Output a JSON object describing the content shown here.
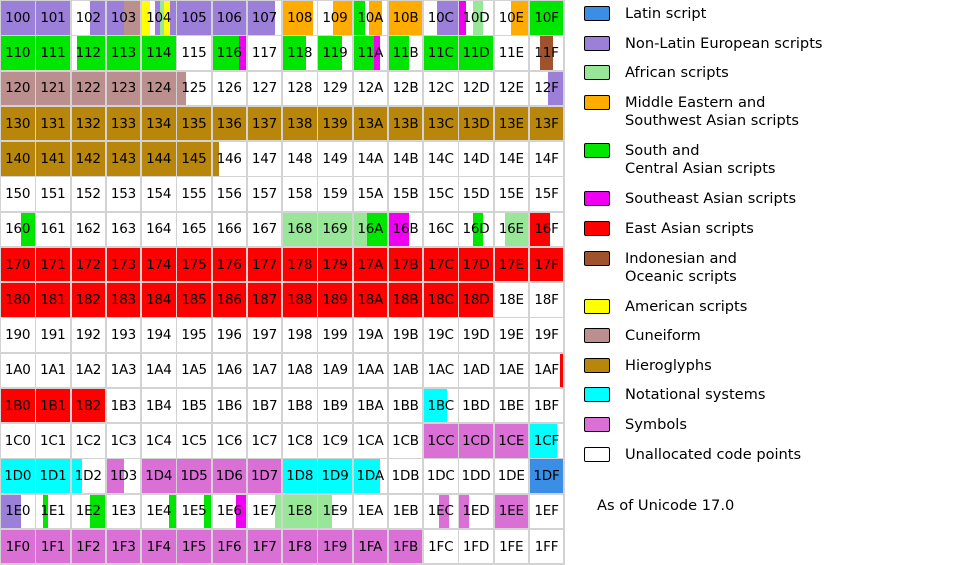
{
  "legend": [
    {
      "key": "L",
      "label": "Latin script",
      "color": "#3a8ee6"
    },
    {
      "key": "E",
      "label": "Non-Latin European scripts",
      "color": "#9b7fd9"
    },
    {
      "key": "A",
      "label": "African scripts",
      "color": "#98e698"
    },
    {
      "key": "M",
      "label": "Middle Eastern and\nSouthwest Asian scripts",
      "color": "#ffab00"
    },
    {
      "key": "S",
      "label": "South and\nCentral Asian scripts",
      "color": "#00e600"
    },
    {
      "key": "T",
      "label": "Southeast Asian scripts",
      "color": "#f000f0"
    },
    {
      "key": "R",
      "label": "East Asian scripts",
      "color": "#ff0000"
    },
    {
      "key": "I",
      "label": "Indonesian and\nOceanic scripts",
      "color": "#a0522d"
    },
    {
      "key": "Y",
      "label": "American scripts",
      "color": "#ffff00"
    },
    {
      "key": "C",
      "label": "Cuneiform",
      "color": "#bc8f8f"
    },
    {
      "key": "H",
      "label": "Hieroglyphs",
      "color": "#b8860b"
    },
    {
      "key": "N",
      "label": "Notational systems",
      "color": "#00ffff"
    },
    {
      "key": "P",
      "label": "Symbols",
      "color": "#da70d6"
    },
    {
      "key": "U",
      "label": "Unallocated code points",
      "color": "#ffffff"
    }
  ],
  "footnote": "As of Unicode 17.0",
  "grid": {
    "rows": [
      "10",
      "11",
      "12",
      "13",
      "14",
      "15",
      "16",
      "17",
      "18",
      "19",
      "1A",
      "1B",
      "1C",
      "1D",
      "1E",
      "1F"
    ],
    "cols": [
      "0",
      "1",
      "2",
      "3",
      "4",
      "5",
      "6",
      "7",
      "8",
      "9",
      "A",
      "B",
      "C",
      "D",
      "E",
      "F"
    ],
    "fills": {
      "100": [
        [
          "E",
          1
        ]
      ],
      "101": [
        [
          "E",
          1
        ]
      ],
      "102": [
        [
          "U",
          0.55
        ],
        [
          "E",
          0.45
        ]
      ],
      "103": [
        [
          "E",
          0.5
        ],
        [
          "C",
          0.5
        ]
      ],
      "104": [
        [
          "Y",
          0.25
        ],
        [
          "U",
          0.15
        ],
        [
          "E",
          0.15
        ],
        [
          "A",
          0.1
        ],
        [
          "Y",
          0.2
        ],
        [
          "E",
          0.15
        ]
      ],
      "105": [
        [
          "E",
          1
        ]
      ],
      "106": [
        [
          "E",
          1
        ]
      ],
      "107": [
        [
          "E",
          0.8
        ],
        [
          "U",
          0.2
        ]
      ],
      "108": [
        [
          "M",
          0.9
        ],
        [
          "U",
          0.1
        ]
      ],
      "109": [
        [
          "U",
          0.45
        ],
        [
          "M",
          0.55
        ]
      ],
      "10A": [
        [
          "S",
          0.35
        ],
        [
          "U",
          0.1
        ],
        [
          "M",
          0.4
        ],
        [
          "U",
          0.15
        ]
      ],
      "10B": [
        [
          "M",
          1
        ]
      ],
      "10C": [
        [
          "U",
          0.4
        ],
        [
          "E",
          0.6
        ]
      ],
      "10D": [
        [
          "T",
          0.2
        ],
        [
          "U",
          0.2
        ],
        [
          "A",
          0.3
        ],
        [
          "U",
          0.3
        ]
      ],
      "10E": [
        [
          "U",
          0.5
        ],
        [
          "M",
          0.5
        ]
      ],
      "10F": [
        [
          "S",
          1
        ]
      ],
      "110": [
        [
          "S",
          1
        ]
      ],
      "111": [
        [
          "S",
          1
        ]
      ],
      "112": [
        [
          "U",
          0.15
        ],
        [
          "S",
          0.85
        ]
      ],
      "113": [
        [
          "S",
          1
        ]
      ],
      "114": [
        [
          "S",
          1
        ]
      ],
      "115": [
        [
          "U",
          1
        ]
      ],
      "116": [
        [
          "S",
          0.8
        ],
        [
          "T",
          0.2
        ]
      ],
      "117": [
        [
          "U",
          1
        ]
      ],
      "118": [
        [
          "S",
          0.7
        ],
        [
          "U",
          0.3
        ]
      ],
      "119": [
        [
          "S",
          0.7
        ],
        [
          "U",
          0.3
        ]
      ],
      "11A": [
        [
          "S",
          0.6
        ],
        [
          "T",
          0.2
        ],
        [
          "U",
          0.2
        ]
      ],
      "11B": [
        [
          "S",
          0.6
        ],
        [
          "U",
          0.4
        ]
      ],
      "11C": [
        [
          "S",
          1
        ]
      ],
      "11D": [
        [
          "S",
          1
        ]
      ],
      "11E": [
        [
          "U",
          1
        ]
      ],
      "11F": [
        [
          "U",
          0.3
        ],
        [
          "I",
          0.4
        ],
        [
          "U",
          0.3
        ]
      ],
      "120": [
        [
          "C",
          1
        ]
      ],
      "121": [
        [
          "C",
          1
        ]
      ],
      "122": [
        [
          "C",
          1
        ]
      ],
      "123": [
        [
          "C",
          1
        ]
      ],
      "124": [
        [
          "C",
          1
        ]
      ],
      "125": [
        [
          "C",
          0.25
        ],
        [
          "U",
          0.75
        ]
      ],
      "12F": [
        [
          "U",
          0.55
        ],
        [
          "E",
          0.45
        ]
      ],
      "130": [
        [
          "H",
          1
        ]
      ],
      "131": [
        [
          "H",
          1
        ]
      ],
      "132": [
        [
          "H",
          1
        ]
      ],
      "133": [
        [
          "H",
          1
        ]
      ],
      "134": [
        [
          "H",
          1
        ]
      ],
      "135": [
        [
          "H",
          1
        ]
      ],
      "136": [
        [
          "H",
          1
        ]
      ],
      "137": [
        [
          "H",
          1
        ]
      ],
      "138": [
        [
          "H",
          1
        ]
      ],
      "139": [
        [
          "H",
          1
        ]
      ],
      "13A": [
        [
          "H",
          1
        ]
      ],
      "13B": [
        [
          "H",
          1
        ]
      ],
      "13C": [
        [
          "H",
          1
        ]
      ],
      "13D": [
        [
          "H",
          1
        ]
      ],
      "13E": [
        [
          "H",
          1
        ]
      ],
      "13F": [
        [
          "H",
          1
        ]
      ],
      "140": [
        [
          "H",
          1
        ]
      ],
      "141": [
        [
          "H",
          1
        ]
      ],
      "142": [
        [
          "H",
          1
        ]
      ],
      "143": [
        [
          "H",
          1
        ]
      ],
      "144": [
        [
          "H",
          1
        ]
      ],
      "145": [
        [
          "H",
          1
        ]
      ],
      "146": [
        [
          "H",
          0.2
        ],
        [
          "U",
          0.8
        ]
      ],
      "160": [
        [
          "U",
          0.6
        ],
        [
          "S",
          0.4
        ]
      ],
      "161": [
        [
          "U",
          1
        ]
      ],
      "168": [
        [
          "A",
          1
        ]
      ],
      "169": [
        [
          "A",
          1
        ]
      ],
      "16A": [
        [
          "A",
          0.4
        ],
        [
          "S",
          0.6
        ]
      ],
      "16B": [
        [
          "T",
          0.6
        ],
        [
          "U",
          0.4
        ]
      ],
      "16D": [
        [
          "U",
          0.4
        ],
        [
          "S",
          0.3
        ],
        [
          "U",
          0.3
        ]
      ],
      "16E": [
        [
          "U",
          0.3
        ],
        [
          "A",
          0.7
        ]
      ],
      "16F": [
        [
          "R",
          0.6
        ],
        [
          "U",
          0.4
        ]
      ],
      "170": [
        [
          "R",
          1
        ]
      ],
      "171": [
        [
          "R",
          1
        ]
      ],
      "172": [
        [
          "R",
          1
        ]
      ],
      "173": [
        [
          "R",
          1
        ]
      ],
      "174": [
        [
          "R",
          1
        ]
      ],
      "175": [
        [
          "R",
          1
        ]
      ],
      "176": [
        [
          "R",
          1
        ]
      ],
      "177": [
        [
          "R",
          1
        ]
      ],
      "178": [
        [
          "R",
          1
        ]
      ],
      "179": [
        [
          "R",
          1
        ]
      ],
      "17A": [
        [
          "R",
          1
        ]
      ],
      "17B": [
        [
          "R",
          1
        ]
      ],
      "17C": [
        [
          "R",
          1
        ]
      ],
      "17D": [
        [
          "R",
          1
        ]
      ],
      "17E": [
        [
          "R",
          1
        ]
      ],
      "17F": [
        [
          "R",
          1
        ]
      ],
      "180": [
        [
          "R",
          1
        ]
      ],
      "181": [
        [
          "R",
          1
        ]
      ],
      "182": [
        [
          "R",
          1
        ]
      ],
      "183": [
        [
          "R",
          1
        ]
      ],
      "184": [
        [
          "R",
          1
        ]
      ],
      "185": [
        [
          "R",
          1
        ]
      ],
      "186": [
        [
          "R",
          1
        ]
      ],
      "187": [
        [
          "R",
          1
        ]
      ],
      "188": [
        [
          "R",
          1
        ]
      ],
      "189": [
        [
          "R",
          1
        ]
      ],
      "18A": [
        [
          "R",
          1
        ]
      ],
      "18B": [
        [
          "R",
          1
        ]
      ],
      "18C": [
        [
          "R",
          1
        ]
      ],
      "18D": [
        [
          "R",
          1
        ]
      ],
      "1AF": [
        [
          "U",
          0.9
        ],
        [
          "R",
          0.1
        ]
      ],
      "1B0": [
        [
          "R",
          1
        ]
      ],
      "1B1": [
        [
          "R",
          1
        ]
      ],
      "1B2": [
        [
          "R",
          1
        ]
      ],
      "1BC": [
        [
          "N",
          0.7
        ],
        [
          "U",
          0.3
        ]
      ],
      "1CC": [
        [
          "P",
          1
        ]
      ],
      "1CD": [
        [
          "P",
          1
        ]
      ],
      "1CE": [
        [
          "P",
          1
        ]
      ],
      "1CF": [
        [
          "N",
          0.8
        ],
        [
          "U",
          0.2
        ]
      ],
      "1D0": [
        [
          "N",
          1
        ]
      ],
      "1D1": [
        [
          "N",
          1
        ]
      ],
      "1D2": [
        [
          "N",
          0.3
        ],
        [
          "U",
          0.7
        ]
      ],
      "1D3": [
        [
          "P",
          0.5
        ],
        [
          "U",
          0.5
        ]
      ],
      "1D4": [
        [
          "P",
          1
        ]
      ],
      "1D5": [
        [
          "P",
          1
        ]
      ],
      "1D6": [
        [
          "P",
          1
        ]
      ],
      "1D7": [
        [
          "P",
          1
        ]
      ],
      "1D8": [
        [
          "N",
          1
        ]
      ],
      "1D9": [
        [
          "N",
          1
        ]
      ],
      "1DA": [
        [
          "N",
          0.8
        ],
        [
          "U",
          0.2
        ]
      ],
      "1DF": [
        [
          "L",
          1
        ]
      ],
      "1E0": [
        [
          "E",
          0.6
        ],
        [
          "U",
          0.4
        ]
      ],
      "1E1": [
        [
          "U",
          0.2
        ],
        [
          "S",
          0.15
        ],
        [
          "U",
          0.65
        ]
      ],
      "1E2": [
        [
          "U",
          0.55
        ],
        [
          "S",
          0.45
        ]
      ],
      "1E4": [
        [
          "U",
          0.8
        ],
        [
          "S",
          0.2
        ]
      ],
      "1E5": [
        [
          "U",
          0.8
        ],
        [
          "S",
          0.2
        ]
      ],
      "1E6": [
        [
          "U",
          0.7
        ],
        [
          "T",
          0.3
        ]
      ],
      "1E7": [
        [
          "U",
          0.8
        ],
        [
          "A",
          0.2
        ]
      ],
      "1E8": [
        [
          "A",
          1
        ]
      ],
      "1E9": [
        [
          "A",
          0.4
        ],
        [
          "U",
          0.6
        ]
      ],
      "1EC": [
        [
          "U",
          0.45
        ],
        [
          "P",
          0.3
        ],
        [
          "U",
          0.25
        ]
      ],
      "1ED": [
        [
          "P",
          0.3
        ],
        [
          "U",
          0.7
        ]
      ],
      "1EE": [
        [
          "P",
          1
        ]
      ],
      "1F0": [
        [
          "P",
          1
        ]
      ],
      "1F1": [
        [
          "P",
          1
        ]
      ],
      "1F2": [
        [
          "P",
          1
        ]
      ],
      "1F3": [
        [
          "P",
          1
        ]
      ],
      "1F4": [
        [
          "P",
          1
        ]
      ],
      "1F5": [
        [
          "P",
          1
        ]
      ],
      "1F6": [
        [
          "P",
          1
        ]
      ],
      "1F7": [
        [
          "P",
          1
        ]
      ],
      "1F8": [
        [
          "P",
          1
        ]
      ],
      "1F9": [
        [
          "P",
          1
        ]
      ],
      "1FA": [
        [
          "P",
          1
        ]
      ],
      "1FB": [
        [
          "P",
          1
        ]
      ]
    }
  }
}
